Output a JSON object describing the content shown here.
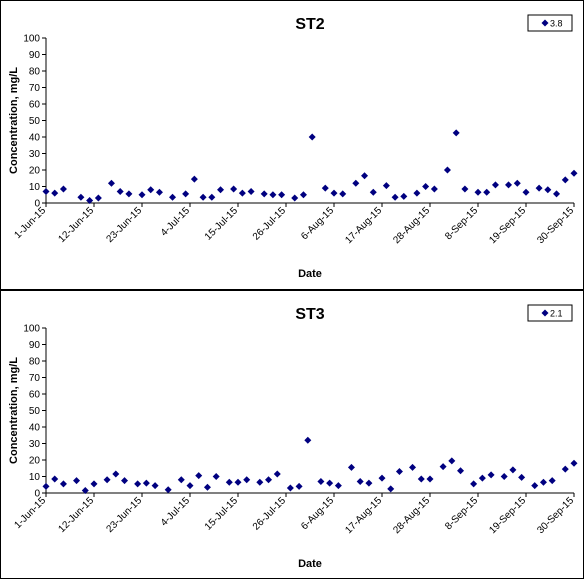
{
  "chart_data": [
    {
      "type": "scatter",
      "title": "ST2",
      "xlabel": "Date",
      "ylabel": "Concentration, mg/L",
      "ylim": [
        0,
        100
      ],
      "yticks": [
        0,
        10,
        20,
        30,
        40,
        50,
        60,
        70,
        80,
        90,
        100
      ],
      "xlim": [
        "2015-06-01",
        "2015-09-30"
      ],
      "xtick_labels": [
        "1-Jun-15",
        "12-Jun-15",
        "23-Jun-15",
        "4-Jul-15",
        "15-Jul-15",
        "26-Jul-15",
        "6-Aug-15",
        "17-Aug-15",
        "28-Aug-15",
        "8-Sep-15",
        "19-Sep-15",
        "30-Sep-15"
      ],
      "xtick_dates": [
        "2015-06-01",
        "2015-06-12",
        "2015-06-23",
        "2015-07-04",
        "2015-07-15",
        "2015-07-26",
        "2015-08-06",
        "2015-08-17",
        "2015-08-28",
        "2015-09-08",
        "2015-09-19",
        "2015-09-30"
      ],
      "legend_position": "top-right",
      "marker_color": "#000080",
      "series": [
        {
          "name": "3.8",
          "points": [
            {
              "x": "2015-06-01",
              "y": 7
            },
            {
              "x": "2015-06-03",
              "y": 6
            },
            {
              "x": "2015-06-05",
              "y": 8.5
            },
            {
              "x": "2015-06-09",
              "y": 3.5
            },
            {
              "x": "2015-06-11",
              "y": 1.5
            },
            {
              "x": "2015-06-13",
              "y": 3
            },
            {
              "x": "2015-06-16",
              "y": 12
            },
            {
              "x": "2015-06-18",
              "y": 7
            },
            {
              "x": "2015-06-20",
              "y": 5.5
            },
            {
              "x": "2015-06-23",
              "y": 5
            },
            {
              "x": "2015-06-25",
              "y": 8
            },
            {
              "x": "2015-06-27",
              "y": 6.5
            },
            {
              "x": "2015-06-30",
              "y": 3.5
            },
            {
              "x": "2015-07-03",
              "y": 5.5
            },
            {
              "x": "2015-07-05",
              "y": 14.5
            },
            {
              "x": "2015-07-07",
              "y": 3.5
            },
            {
              "x": "2015-07-09",
              "y": 3.5
            },
            {
              "x": "2015-07-11",
              "y": 8
            },
            {
              "x": "2015-07-14",
              "y": 8.5
            },
            {
              "x": "2015-07-16",
              "y": 6
            },
            {
              "x": "2015-07-18",
              "y": 7
            },
            {
              "x": "2015-07-21",
              "y": 5.5
            },
            {
              "x": "2015-07-23",
              "y": 5
            },
            {
              "x": "2015-07-25",
              "y": 5
            },
            {
              "x": "2015-07-28",
              "y": 3
            },
            {
              "x": "2015-07-30",
              "y": 5
            },
            {
              "x": "2015-08-01",
              "y": 40
            },
            {
              "x": "2015-08-04",
              "y": 9
            },
            {
              "x": "2015-08-06",
              "y": 6
            },
            {
              "x": "2015-08-08",
              "y": 5.5
            },
            {
              "x": "2015-08-11",
              "y": 12
            },
            {
              "x": "2015-08-13",
              "y": 16.5
            },
            {
              "x": "2015-08-15",
              "y": 6.5
            },
            {
              "x": "2015-08-18",
              "y": 10.5
            },
            {
              "x": "2015-08-20",
              "y": 3.5
            },
            {
              "x": "2015-08-22",
              "y": 4
            },
            {
              "x": "2015-08-25",
              "y": 6
            },
            {
              "x": "2015-08-27",
              "y": 10
            },
            {
              "x": "2015-08-29",
              "y": 8.5
            },
            {
              "x": "2015-09-01",
              "y": 20
            },
            {
              "x": "2015-09-03",
              "y": 42.5
            },
            {
              "x": "2015-09-05",
              "y": 8.5
            },
            {
              "x": "2015-09-08",
              "y": 6.5
            },
            {
              "x": "2015-09-10",
              "y": 6.5
            },
            {
              "x": "2015-09-12",
              "y": 11
            },
            {
              "x": "2015-09-15",
              "y": 11
            },
            {
              "x": "2015-09-17",
              "y": 12
            },
            {
              "x": "2015-09-19",
              "y": 6.5
            },
            {
              "x": "2015-09-22",
              "y": 9
            },
            {
              "x": "2015-09-24",
              "y": 8
            },
            {
              "x": "2015-09-26",
              "y": 5.5
            },
            {
              "x": "2015-09-28",
              "y": 14
            },
            {
              "x": "2015-09-30",
              "y": 18
            }
          ]
        }
      ]
    },
    {
      "type": "scatter",
      "title": "ST3",
      "xlabel": "Date",
      "ylabel": "Concentration, mg/L",
      "ylim": [
        0,
        100
      ],
      "yticks": [
        0,
        10,
        20,
        30,
        40,
        50,
        60,
        70,
        80,
        90,
        100
      ],
      "xlim": [
        "2015-06-01",
        "2015-09-30"
      ],
      "xtick_labels": [
        "1-Jun-15",
        "12-Jun-15",
        "23-Jun-15",
        "4-Jul-15",
        "15-Jul-15",
        "26-Jul-15",
        "6-Aug-15",
        "17-Aug-15",
        "28-Aug-15",
        "8-Sep-15",
        "19-Sep-15",
        "30-Sep-15"
      ],
      "xtick_dates": [
        "2015-06-01",
        "2015-06-12",
        "2015-06-23",
        "2015-07-04",
        "2015-07-15",
        "2015-07-26",
        "2015-08-06",
        "2015-08-17",
        "2015-08-28",
        "2015-09-08",
        "2015-09-19",
        "2015-09-30"
      ],
      "legend_position": "top-right",
      "marker_color": "#000080",
      "series": [
        {
          "name": "2.1",
          "points": [
            {
              "x": "2015-06-01",
              "y": 4
            },
            {
              "x": "2015-06-03",
              "y": 8.5
            },
            {
              "x": "2015-06-05",
              "y": 5.5
            },
            {
              "x": "2015-06-08",
              "y": 7.5
            },
            {
              "x": "2015-06-10",
              "y": 1.5
            },
            {
              "x": "2015-06-12",
              "y": 5.5
            },
            {
              "x": "2015-06-15",
              "y": 8
            },
            {
              "x": "2015-06-17",
              "y": 11.5
            },
            {
              "x": "2015-06-19",
              "y": 7.5
            },
            {
              "x": "2015-06-22",
              "y": 5.5
            },
            {
              "x": "2015-06-24",
              "y": 6
            },
            {
              "x": "2015-06-26",
              "y": 4.5
            },
            {
              "x": "2015-06-29",
              "y": 2
            },
            {
              "x": "2015-07-02",
              "y": 8
            },
            {
              "x": "2015-07-04",
              "y": 4.5
            },
            {
              "x": "2015-07-06",
              "y": 10.5
            },
            {
              "x": "2015-07-08",
              "y": 3.5
            },
            {
              "x": "2015-07-10",
              "y": 10
            },
            {
              "x": "2015-07-13",
              "y": 6.5
            },
            {
              "x": "2015-07-15",
              "y": 6.5
            },
            {
              "x": "2015-07-17",
              "y": 8
            },
            {
              "x": "2015-07-20",
              "y": 6.5
            },
            {
              "x": "2015-07-22",
              "y": 8
            },
            {
              "x": "2015-07-24",
              "y": 11.5
            },
            {
              "x": "2015-07-27",
              "y": 3
            },
            {
              "x": "2015-07-29",
              "y": 4
            },
            {
              "x": "2015-07-31",
              "y": 32
            },
            {
              "x": "2015-08-03",
              "y": 7
            },
            {
              "x": "2015-08-05",
              "y": 6
            },
            {
              "x": "2015-08-07",
              "y": 4.5
            },
            {
              "x": "2015-08-10",
              "y": 15.5
            },
            {
              "x": "2015-08-12",
              "y": 7
            },
            {
              "x": "2015-08-14",
              "y": 6
            },
            {
              "x": "2015-08-17",
              "y": 9
            },
            {
              "x": "2015-08-19",
              "y": 2.5
            },
            {
              "x": "2015-08-21",
              "y": 13
            },
            {
              "x": "2015-08-24",
              "y": 15.5
            },
            {
              "x": "2015-08-26",
              "y": 8.5
            },
            {
              "x": "2015-08-28",
              "y": 8.5
            },
            {
              "x": "2015-08-31",
              "y": 16
            },
            {
              "x": "2015-09-02",
              "y": 19.5
            },
            {
              "x": "2015-09-04",
              "y": 13.5
            },
            {
              "x": "2015-09-07",
              "y": 5.5
            },
            {
              "x": "2015-09-09",
              "y": 9
            },
            {
              "x": "2015-09-11",
              "y": 11
            },
            {
              "x": "2015-09-14",
              "y": 10
            },
            {
              "x": "2015-09-16",
              "y": 14
            },
            {
              "x": "2015-09-18",
              "y": 9.5
            },
            {
              "x": "2015-09-21",
              "y": 4.5
            },
            {
              "x": "2015-09-23",
              "y": 6.5
            },
            {
              "x": "2015-09-25",
              "y": 7.5
            },
            {
              "x": "2015-09-28",
              "y": 14.5
            },
            {
              "x": "2015-09-30",
              "y": 18
            }
          ]
        }
      ]
    }
  ]
}
